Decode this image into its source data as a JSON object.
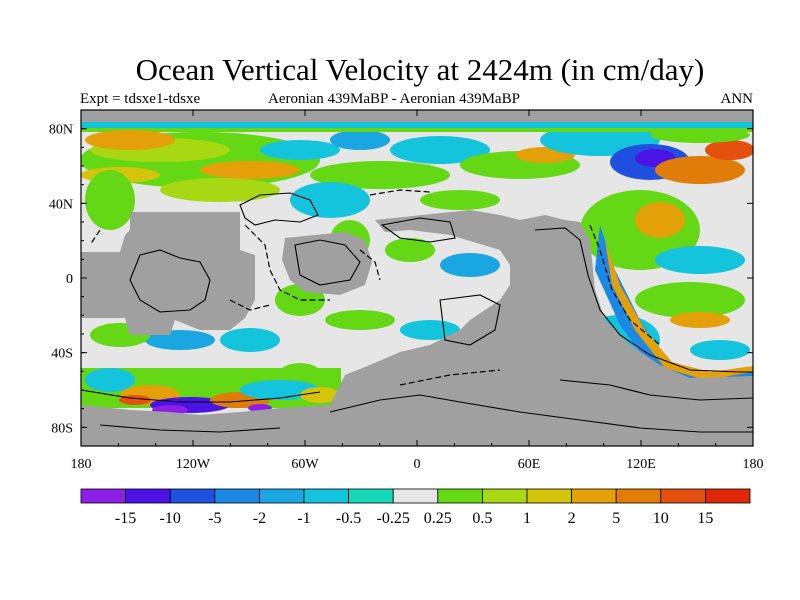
{
  "title": "Ocean Vertical Velocity at 2424m (in cm/day)",
  "subtitle_left": "Expt = tdsxe1-tdsxe",
  "subtitle_center": "Aeronian 439MaBP - Aeronian 439MaBP",
  "subtitle_right": "ANN",
  "map": {
    "projection": "cylindrical-equidistant",
    "lon_range": [
      -180,
      180
    ],
    "lat_range": [
      -90,
      90
    ],
    "x_ticks": [
      {
        "lon": -180,
        "label": "180"
      },
      {
        "lon": -120,
        "label": "120W"
      },
      {
        "lon": -60,
        "label": "60W"
      },
      {
        "lon": 0,
        "label": "0"
      },
      {
        "lon": 60,
        "label": "60E"
      },
      {
        "lon": 120,
        "label": "120E"
      },
      {
        "lon": 180,
        "label": "180"
      }
    ],
    "y_ticks": [
      {
        "lat": 80,
        "label": "80N"
      },
      {
        "lat": 40,
        "label": "40N"
      },
      {
        "lat": 0,
        "label": "0"
      },
      {
        "lat": -40,
        "label": "40S"
      },
      {
        "lat": -80,
        "label": "80S"
      }
    ],
    "land_color": "#a0a0a0",
    "near_zero_color": "#e6e6e6"
  },
  "colorbar": {
    "levels": [
      "-15",
      "-10",
      "-5",
      "-2",
      "-1",
      "-0.5",
      "-0.25",
      "0.25",
      "0.5",
      "1",
      "2",
      "5",
      "10",
      "15"
    ],
    "colors": [
      "#8c1ee8",
      "#4b14e6",
      "#2050e0",
      "#1c88e6",
      "#1aa6e0",
      "#14c4dc",
      "#14d8b4",
      "#e6e6e6",
      "#64d814",
      "#a8d814",
      "#d4c40c",
      "#e4a008",
      "#e07c08",
      "#e45010",
      "#e02808"
    ]
  }
}
